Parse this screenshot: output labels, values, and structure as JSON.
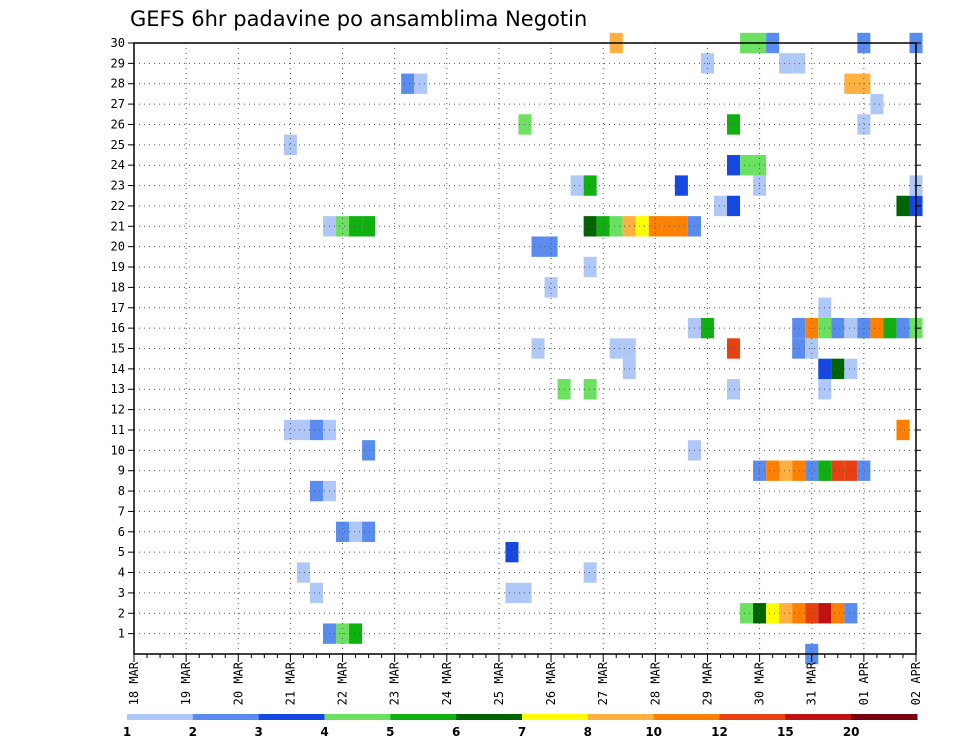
{
  "chart_data": {
    "type": "heatmap",
    "title": "GEFS 6hr padavine po ansamblima Negotin",
    "x": {
      "tick_labels": [
        "18 MAR",
        "19 MAR",
        "20 MAR",
        "21 MAR",
        "22 MAR",
        "23 MAR",
        "24 MAR",
        "25 MAR",
        "26 MAR",
        "27 MAR",
        "28 MAR",
        "29 MAR",
        "30 MAR",
        "31 MAR",
        "01 APR",
        "02 APR"
      ],
      "range_days": [
        0,
        15
      ],
      "step_days": 0.25
    },
    "y": {
      "tick_labels": [
        "1",
        "2",
        "3",
        "4",
        "5",
        "6",
        "7",
        "8",
        "9",
        "10",
        "11",
        "12",
        "13",
        "14",
        "15",
        "16",
        "17",
        "18",
        "19",
        "20",
        "21",
        "22",
        "23",
        "24",
        "25",
        "26",
        "27",
        "28",
        "29",
        "30"
      ],
      "range": [
        0,
        30
      ],
      "label": ""
    },
    "grid": true,
    "colorbar": {
      "position": "bottom",
      "labels": [
        "1",
        "2",
        "3",
        "4",
        "5",
        "6",
        "7",
        "8",
        "10",
        "12",
        "15",
        "20"
      ],
      "colors": [
        "#b0c8f8",
        "#5a8cf0",
        "#1448e0",
        "#6ce060",
        "#10b010",
        "#006400",
        "#ffff00",
        "#ffb040",
        "#ff8000",
        "#e84010",
        "#c01010",
        "#780010"
      ]
    },
    "cells": [
      {
        "m": 0,
        "d": 3.75,
        "c": 2
      },
      {
        "m": 0,
        "d": 4,
        "c": 4
      },
      {
        "m": 0,
        "d": 4.25,
        "c": 5
      },
      {
        "m": 1,
        "d": 11.75,
        "c": 4
      },
      {
        "m": 1,
        "d": 12,
        "c": 6
      },
      {
        "m": 1,
        "d": 12.25,
        "c": 7
      },
      {
        "m": 1,
        "d": 12.5,
        "c": 8
      },
      {
        "m": 1,
        "d": 12.75,
        "c": 9
      },
      {
        "m": 1,
        "d": 13,
        "c": 10
      },
      {
        "m": 1,
        "d": 13.25,
        "c": 11
      },
      {
        "m": 1,
        "d": 13.5,
        "c": 9
      },
      {
        "m": 1,
        "d": 13.75,
        "c": 2
      },
      {
        "m": 2,
        "d": 3.5,
        "c": 1
      },
      {
        "m": 2,
        "d": 7.25,
        "c": 1
      },
      {
        "m": 2,
        "d": 7.5,
        "c": 1
      },
      {
        "m": 3,
        "d": 3.25,
        "c": 1
      },
      {
        "m": 3,
        "d": 8.75,
        "c": 1
      },
      {
        "m": 4,
        "d": 7.25,
        "c": 3
      },
      {
        "m": 5,
        "d": 4,
        "c": 2
      },
      {
        "m": 5,
        "d": 4.25,
        "c": 1
      },
      {
        "m": 5,
        "d": 4.5,
        "c": 2
      },
      {
        "m": 7,
        "d": 3.5,
        "c": 2
      },
      {
        "m": 7,
        "d": 3.75,
        "c": 1
      },
      {
        "m": 8,
        "d": 12,
        "c": 2
      },
      {
        "m": 8,
        "d": 12.25,
        "c": 9
      },
      {
        "m": 8,
        "d": 12.5,
        "c": 8
      },
      {
        "m": 8,
        "d": 12.75,
        "c": 9
      },
      {
        "m": 8,
        "d": 13,
        "c": 2
      },
      {
        "m": 8,
        "d": 13.25,
        "c": 5
      },
      {
        "m": 8,
        "d": 13.5,
        "c": 10
      },
      {
        "m": 8,
        "d": 13.75,
        "c": 10
      },
      {
        "m": 8,
        "d": 14,
        "c": 2
      },
      {
        "m": 9,
        "d": 4.5,
        "c": 2
      },
      {
        "m": 9,
        "d": 10.75,
        "c": 1
      },
      {
        "m": 10,
        "d": 3,
        "c": 1
      },
      {
        "m": 10,
        "d": 3.25,
        "c": 1
      },
      {
        "m": 10,
        "d": 3.5,
        "c": 2
      },
      {
        "m": 10,
        "d": 3.75,
        "c": 1
      },
      {
        "m": 10,
        "d": 14.75,
        "c": 9
      },
      {
        "m": 12,
        "d": 8.25,
        "c": 4
      },
      {
        "m": 12,
        "d": 8.75,
        "c": 4
      },
      {
        "m": 12,
        "d": 11.5,
        "c": 1
      },
      {
        "m": 12,
        "d": 13.25,
        "c": 1
      },
      {
        "m": 13,
        "d": 9.5,
        "c": 1
      },
      {
        "m": 13,
        "d": 13.25,
        "c": 3
      },
      {
        "m": 13,
        "d": 13.5,
        "c": 6
      },
      {
        "m": 13,
        "d": 13.75,
        "c": 1
      },
      {
        "m": 14,
        "d": 7.75,
        "c": 1
      },
      {
        "m": 14,
        "d": 9.25,
        "c": 1
      },
      {
        "m": 14,
        "d": 9.5,
        "c": 1
      },
      {
        "m": 14,
        "d": 11.5,
        "c": 10
      },
      {
        "m": 14,
        "d": 12.75,
        "c": 2
      },
      {
        "m": 14,
        "d": 13,
        "c": 1
      },
      {
        "m": 15,
        "d": 10.75,
        "c": 1
      },
      {
        "m": 15,
        "d": 11,
        "c": 5
      },
      {
        "m": 15,
        "d": 12.75,
        "c": 2
      },
      {
        "m": 15,
        "d": 13,
        "c": 9
      },
      {
        "m": 15,
        "d": 13.25,
        "c": 4
      },
      {
        "m": 15,
        "d": 13.5,
        "c": 2
      },
      {
        "m": 15,
        "d": 13.75,
        "c": 1
      },
      {
        "m": 15,
        "d": 14,
        "c": 2
      },
      {
        "m": 15,
        "d": 14.25,
        "c": 9
      },
      {
        "m": 15,
        "d": 14.5,
        "c": 5
      },
      {
        "m": 15,
        "d": 14.75,
        "c": 2
      },
      {
        "m": 15,
        "d": 15,
        "c": 4
      },
      {
        "m": 16,
        "d": 13.25,
        "c": 1
      },
      {
        "m": 17,
        "d": 8,
        "c": 1
      },
      {
        "m": 18,
        "d": 8.75,
        "c": 1
      },
      {
        "m": 19,
        "d": 7.75,
        "c": 2
      },
      {
        "m": 19,
        "d": 8,
        "c": 2
      },
      {
        "m": 20,
        "d": 3.75,
        "c": 1
      },
      {
        "m": 20,
        "d": 4,
        "c": 4
      },
      {
        "m": 20,
        "d": 4.25,
        "c": 5
      },
      {
        "m": 20,
        "d": 4.5,
        "c": 5
      },
      {
        "m": 20,
        "d": 8.75,
        "c": 6
      },
      {
        "m": 20,
        "d": 9,
        "c": 5
      },
      {
        "m": 20,
        "d": 9.25,
        "c": 4
      },
      {
        "m": 20,
        "d": 9.5,
        "c": 8
      },
      {
        "m": 20,
        "d": 9.75,
        "c": 7
      },
      {
        "m": 20,
        "d": 10,
        "c": 9
      },
      {
        "m": 20,
        "d": 10.25,
        "c": 9
      },
      {
        "m": 20,
        "d": 10.5,
        "c": 9
      },
      {
        "m": 20,
        "d": 10.75,
        "c": 2
      },
      {
        "m": 21,
        "d": 11.25,
        "c": 1
      },
      {
        "m": 21,
        "d": 11.5,
        "c": 3
      },
      {
        "m": 21,
        "d": 14.75,
        "c": 6
      },
      {
        "m": 21,
        "d": 15,
        "c": 3
      },
      {
        "m": 22,
        "d": 8.5,
        "c": 1
      },
      {
        "m": 22,
        "d": 8.75,
        "c": 5
      },
      {
        "m": 22,
        "d": 10.5,
        "c": 3
      },
      {
        "m": 22,
        "d": 12,
        "c": 1
      },
      {
        "m": 22,
        "d": 15,
        "c": 1
      },
      {
        "m": 23,
        "d": 11.5,
        "c": 3
      },
      {
        "m": 23,
        "d": 11.75,
        "c": 4
      },
      {
        "m": 23,
        "d": 12,
        "c": 4
      },
      {
        "m": 24,
        "d": 3,
        "c": 1
      },
      {
        "m": 25,
        "d": 7.5,
        "c": 4
      },
      {
        "m": 25,
        "d": 11.5,
        "c": 5
      },
      {
        "m": 25,
        "d": 14,
        "c": 1
      },
      {
        "m": 26,
        "d": 14.25,
        "c": 1
      },
      {
        "m": 27,
        "d": 5.25,
        "c": 2
      },
      {
        "m": 27,
        "d": 5.5,
        "c": 1
      },
      {
        "m": 27,
        "d": 13.75,
        "c": 8
      },
      {
        "m": 27,
        "d": 14,
        "c": 8
      },
      {
        "m": 28,
        "d": 11,
        "c": 1
      },
      {
        "m": 28,
        "d": 12.5,
        "c": 1
      },
      {
        "m": 28,
        "d": 12.75,
        "c": 1
      },
      {
        "m": 29,
        "d": 9.25,
        "c": 8
      },
      {
        "m": 29,
        "d": 11.75,
        "c": 4
      },
      {
        "m": 29,
        "d": 12,
        "c": 4
      },
      {
        "m": 29,
        "d": 12.25,
        "c": 2
      },
      {
        "m": 29,
        "d": 14,
        "c": 2
      },
      {
        "m": 29,
        "d": 15,
        "c": 2
      },
      {
        "m": -1,
        "d": 13,
        "c": 2
      }
    ]
  }
}
